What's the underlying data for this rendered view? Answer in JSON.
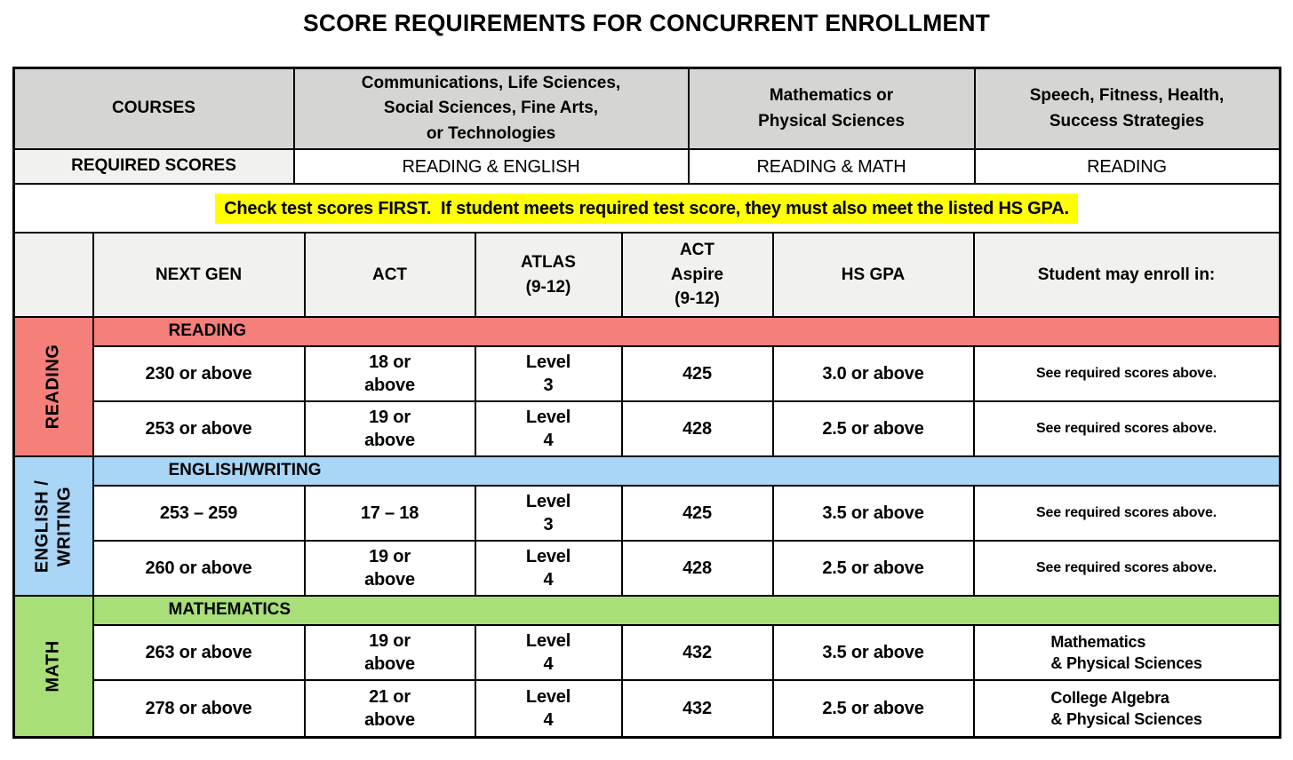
{
  "title": "SCORE REQUIREMENTS FOR CONCURRENT ENROLLMENT",
  "top_header": {
    "courses_label": "COURSES",
    "required_scores_label": "REQUIRED SCORES",
    "course_groups": [
      {
        "name": "Communications, Life Sciences,\nSocial Sciences, Fine Arts,\nor Technologies",
        "required": "READING & ENGLISH"
      },
      {
        "name": "Mathematics or\nPhysical Sciences",
        "required": "READING & MATH"
      },
      {
        "name": "Speech, Fitness, Health,\nSuccess Strategies",
        "required": "READING"
      }
    ]
  },
  "note": "Check test scores FIRST.  If student meets required test score, they must also meet the listed HS GPA.",
  "score_columns": {
    "next_gen": "NEXT GEN",
    "act": "ACT",
    "atlas": "ATLAS\n(9-12)",
    "aspire": "ACT\nAspire\n(9-12)",
    "gpa": "HS GPA",
    "enroll": "Student may enroll in:"
  },
  "sections": [
    {
      "side_label": "READING",
      "banner": "READING",
      "color": "#F5807A",
      "rows": [
        {
          "next_gen": "230 or above",
          "act": "18 or\nabove",
          "atlas": "Level\n3",
          "aspire": "425",
          "gpa": "3.0 or above",
          "enroll": "See required scores above."
        },
        {
          "next_gen": "253 or above",
          "act": "19 or\nabove",
          "atlas": "Level\n4",
          "aspire": "428",
          "gpa": "2.5 or above",
          "enroll": "See required scores above."
        }
      ]
    },
    {
      "side_label": "ENGLISH /\nWRITING",
      "banner": "ENGLISH/WRITING",
      "color": "#A9D5F6",
      "rows": [
        {
          "next_gen": "253 – 259",
          "act": "17 – 18",
          "atlas": "Level\n3",
          "aspire": "425",
          "gpa": "3.5 or above",
          "enroll": "See required scores above."
        },
        {
          "next_gen": "260 or above",
          "act": "19 or\nabove",
          "atlas": "Level\n4",
          "aspire": "428",
          "gpa": "2.5 or above",
          "enroll": "See required scores above."
        }
      ]
    },
    {
      "side_label": "MATH",
      "banner": "MATHEMATICS",
      "color": "#A8DF78",
      "rows": [
        {
          "next_gen": "263 or above",
          "act": "19 or\nabove",
          "atlas": "Level\n4",
          "aspire": "432",
          "gpa": "3.5 or above",
          "enroll": "Mathematics\n& Physical Sciences"
        },
        {
          "next_gen": "278 or above",
          "act": "21 or\nabove",
          "atlas": "Level\n4",
          "aspire": "432",
          "gpa": "2.5 or above",
          "enroll": "College Algebra\n& Physical Sciences"
        }
      ]
    }
  ],
  "colors": {
    "header_gray": "#D5D5D3",
    "subheader_gray": "#F1F1EF",
    "reading_red": "#F5807A",
    "english_blue": "#A9D5F6",
    "math_green": "#A8DF78",
    "highlight_yellow": "#FFFF00",
    "border_black": "#000000"
  }
}
